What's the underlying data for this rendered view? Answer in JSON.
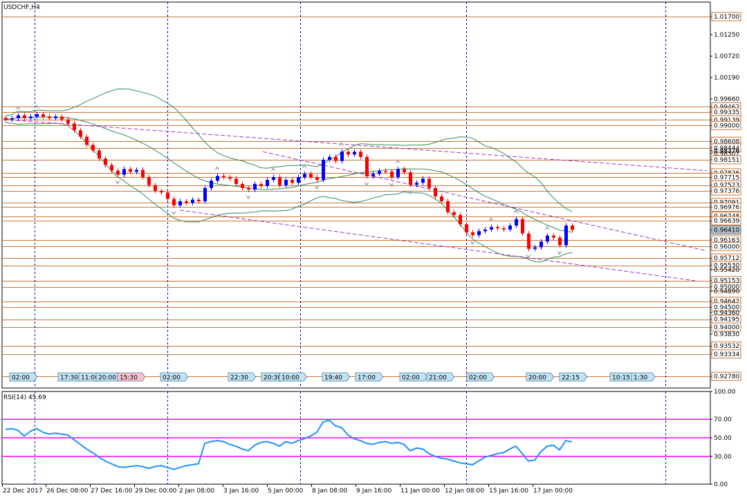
{
  "chart_data": [
    {
      "type": "candlestick",
      "title": "USDCHF,H4",
      "price_axis": {
        "range": [
          0.9249,
          1.0206
        ],
        "ticks": [
          "1.01700",
          "1.01250",
          "1.00720",
          "1.00190",
          "0.99660",
          "0.99462",
          "0.99335",
          "0.99139",
          "0.99000",
          "0.98608",
          "0.98444",
          "0.98376",
          "0.98307",
          "0.98151",
          "0.97826",
          "0.97715",
          "0.97523",
          "0.97376",
          "0.97091",
          "0.96976",
          "0.96748",
          "0.96639",
          "0.96410",
          "0.96163",
          "0.96000",
          "0.95712",
          "0.95530",
          "0.95420",
          "0.95153",
          "0.95000",
          "0.94890",
          "0.94642",
          "0.94500",
          "0.94360",
          "0.94195",
          "0.94000",
          "0.93830",
          "0.93532",
          "0.93334",
          "0.92780"
        ],
        "current_price": "0.96410"
      },
      "time_axis": [
        "22 Dec 2017",
        "26 Dec 08:00",
        "27 Dec 16:00",
        "29 Dec 00:00",
        "2 Jan 08:00",
        "3 Jan 16:00",
        "5 Jan 00:00",
        "8 Jan 08:00",
        "9 Jan 16:00",
        "11 Jan 00:00",
        "12 Jan 08:00",
        "15 Jan 16:00",
        "17 Jan 00:00"
      ],
      "horizontal_levels": [
        1.017,
        0.99462,
        0.99335,
        0.99139,
        0.99,
        0.98608,
        0.98444,
        0.98151,
        0.97826,
        0.97715,
        0.97523,
        0.97376,
        0.97091,
        0.96976,
        0.96748,
        0.96639,
        0.96163,
        0.96,
        0.95712,
        0.9553,
        0.95153,
        0.95,
        0.94642,
        0.945,
        0.94195,
        0.94,
        0.93532,
        0.93334,
        0.9278
      ],
      "closes": [
        0.9915,
        0.9918,
        0.9925,
        0.9918,
        0.9922,
        0.9928,
        0.9922,
        0.9918,
        0.9922,
        0.9915,
        0.9905,
        0.9888,
        0.9872,
        0.9852,
        0.9838,
        0.9818,
        0.9802,
        0.9788,
        0.9778,
        0.9792,
        0.9785,
        0.979,
        0.9772,
        0.9752,
        0.9738,
        0.9734,
        0.9718,
        0.9702,
        0.9712,
        0.9708,
        0.9716,
        0.9712,
        0.9745,
        0.9763,
        0.9775,
        0.9772,
        0.9768,
        0.9755,
        0.9745,
        0.9741,
        0.9755,
        0.975,
        0.9765,
        0.9772,
        0.9752,
        0.9765,
        0.9758,
        0.9772,
        0.978,
        0.9772,
        0.9765,
        0.9815,
        0.9822,
        0.9812,
        0.9835,
        0.9828,
        0.9835,
        0.9822,
        0.9774,
        0.978,
        0.9787,
        0.9786,
        0.9772,
        0.9792,
        0.9784,
        0.9753,
        0.9758,
        0.9768,
        0.9745,
        0.9724,
        0.9712,
        0.9685,
        0.9678,
        0.9655,
        0.9635,
        0.9628,
        0.9638,
        0.9642,
        0.9648,
        0.9645,
        0.9642,
        0.9652,
        0.9668,
        0.9632,
        0.9594,
        0.9598,
        0.9612,
        0.9627,
        0.9622,
        0.9603,
        0.9652,
        0.9641
      ],
      "annotations": [
        {
          "time": "02:00",
          "style": "normal"
        },
        {
          "time": "17:30",
          "style": "normal"
        },
        {
          "time": "11:00",
          "style": "normal"
        },
        {
          "time": "20:00",
          "style": "normal"
        },
        {
          "time": "15:30",
          "style": "pink"
        },
        {
          "time": "02:00",
          "style": "normal"
        },
        {
          "time": "22:30",
          "style": "normal"
        },
        {
          "time": "20:30",
          "style": "normal"
        },
        {
          "time": "10:00",
          "style": "normal"
        },
        {
          "time": "19:40",
          "style": "normal"
        },
        {
          "time": "17:00",
          "style": "normal"
        },
        {
          "time": "02:00",
          "style": "normal"
        },
        {
          "time": "21:00",
          "style": "normal"
        },
        {
          "time": "02:00",
          "style": "normal"
        },
        {
          "time": "20:00",
          "style": "normal"
        },
        {
          "time": "22:15",
          "style": "normal"
        },
        {
          "time": "10:15",
          "style": "normal"
        },
        {
          "time": "1:30",
          "style": "normal"
        }
      ]
    },
    {
      "type": "line",
      "title": "RSI(14) 45.69",
      "ylim": [
        0,
        100
      ],
      "yticks": [
        "100.00",
        "70.00",
        "50.00",
        "30.00",
        "0.00"
      ],
      "levels": [
        70,
        50,
        30
      ],
      "values": [
        59,
        60,
        58,
        52,
        57,
        60,
        56,
        54,
        55,
        54,
        53,
        48,
        43,
        38,
        34,
        29,
        25,
        22,
        19,
        18,
        19,
        20,
        19,
        17,
        19,
        20,
        18,
        16,
        18,
        20,
        21,
        22,
        44,
        46,
        47,
        46,
        43,
        41,
        38,
        36,
        42,
        45,
        46,
        44,
        41,
        46,
        44,
        47,
        49,
        52,
        56,
        67,
        69,
        63,
        61,
        53,
        49,
        47,
        44,
        43,
        45,
        46,
        44,
        45,
        43,
        36,
        39,
        38,
        33,
        30,
        28,
        27,
        25,
        23,
        22,
        21,
        25,
        29,
        31,
        33,
        34,
        38,
        41,
        33,
        25,
        26,
        35,
        41,
        42,
        37,
        47,
        45.69
      ]
    }
  ]
}
